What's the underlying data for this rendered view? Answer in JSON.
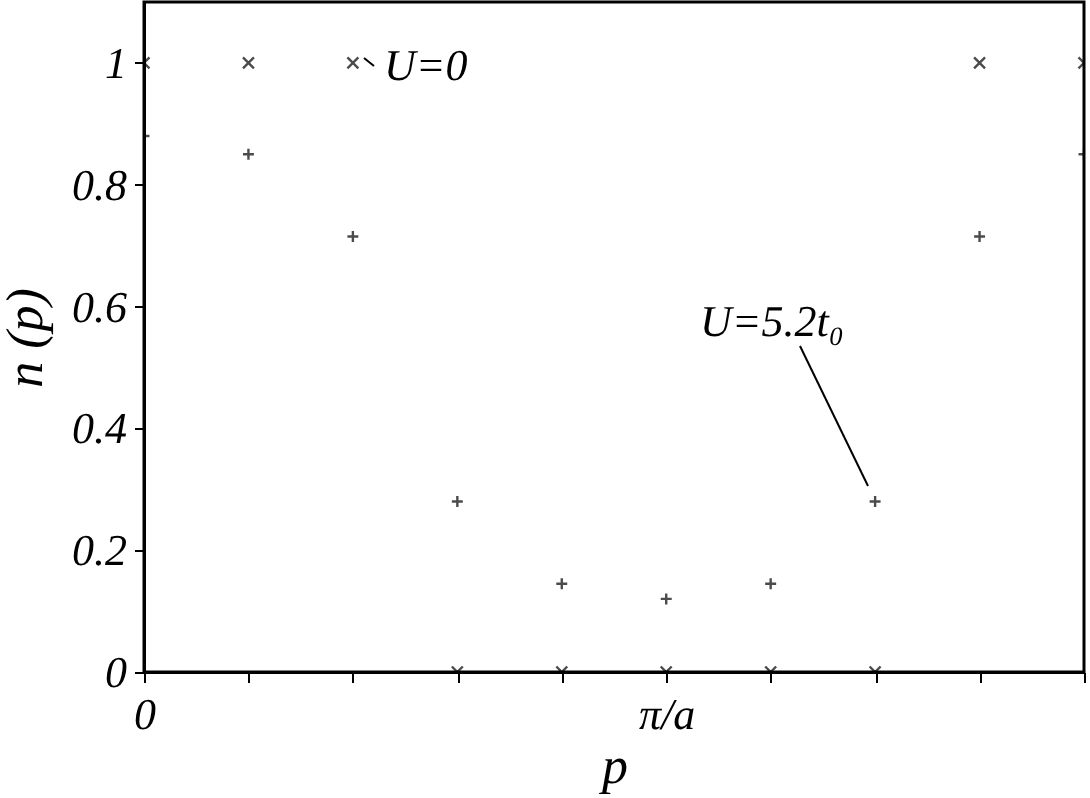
{
  "chart_data": {
    "type": "scatter",
    "xlabel": "p",
    "ylabel": "n (p)",
    "categories": [
      "0",
      null,
      null,
      null,
      null,
      "π/a",
      null,
      null,
      null,
      null
    ],
    "series": [
      {
        "color": "#000000",
        "marker": "x",
        "values": [
          1,
          1,
          1,
          0,
          0,
          0,
          0,
          0,
          1,
          1
        ]
      },
      {
        "color": "#000000",
        "marker": "cross",
        "values": [
          0.88,
          0.85,
          0.715,
          0.28,
          0.145,
          0.12,
          0.145,
          0.28,
          0.715,
          0.85
        ]
      }
    ],
    "ylim": [
      0,
      1.1
    ],
    "yticks": [
      0,
      0.2,
      0.4,
      0.6,
      0.8,
      1
    ],
    "annotations": [
      "U=0",
      "U=5.2t₀"
    ],
    "grid": false
  }
}
